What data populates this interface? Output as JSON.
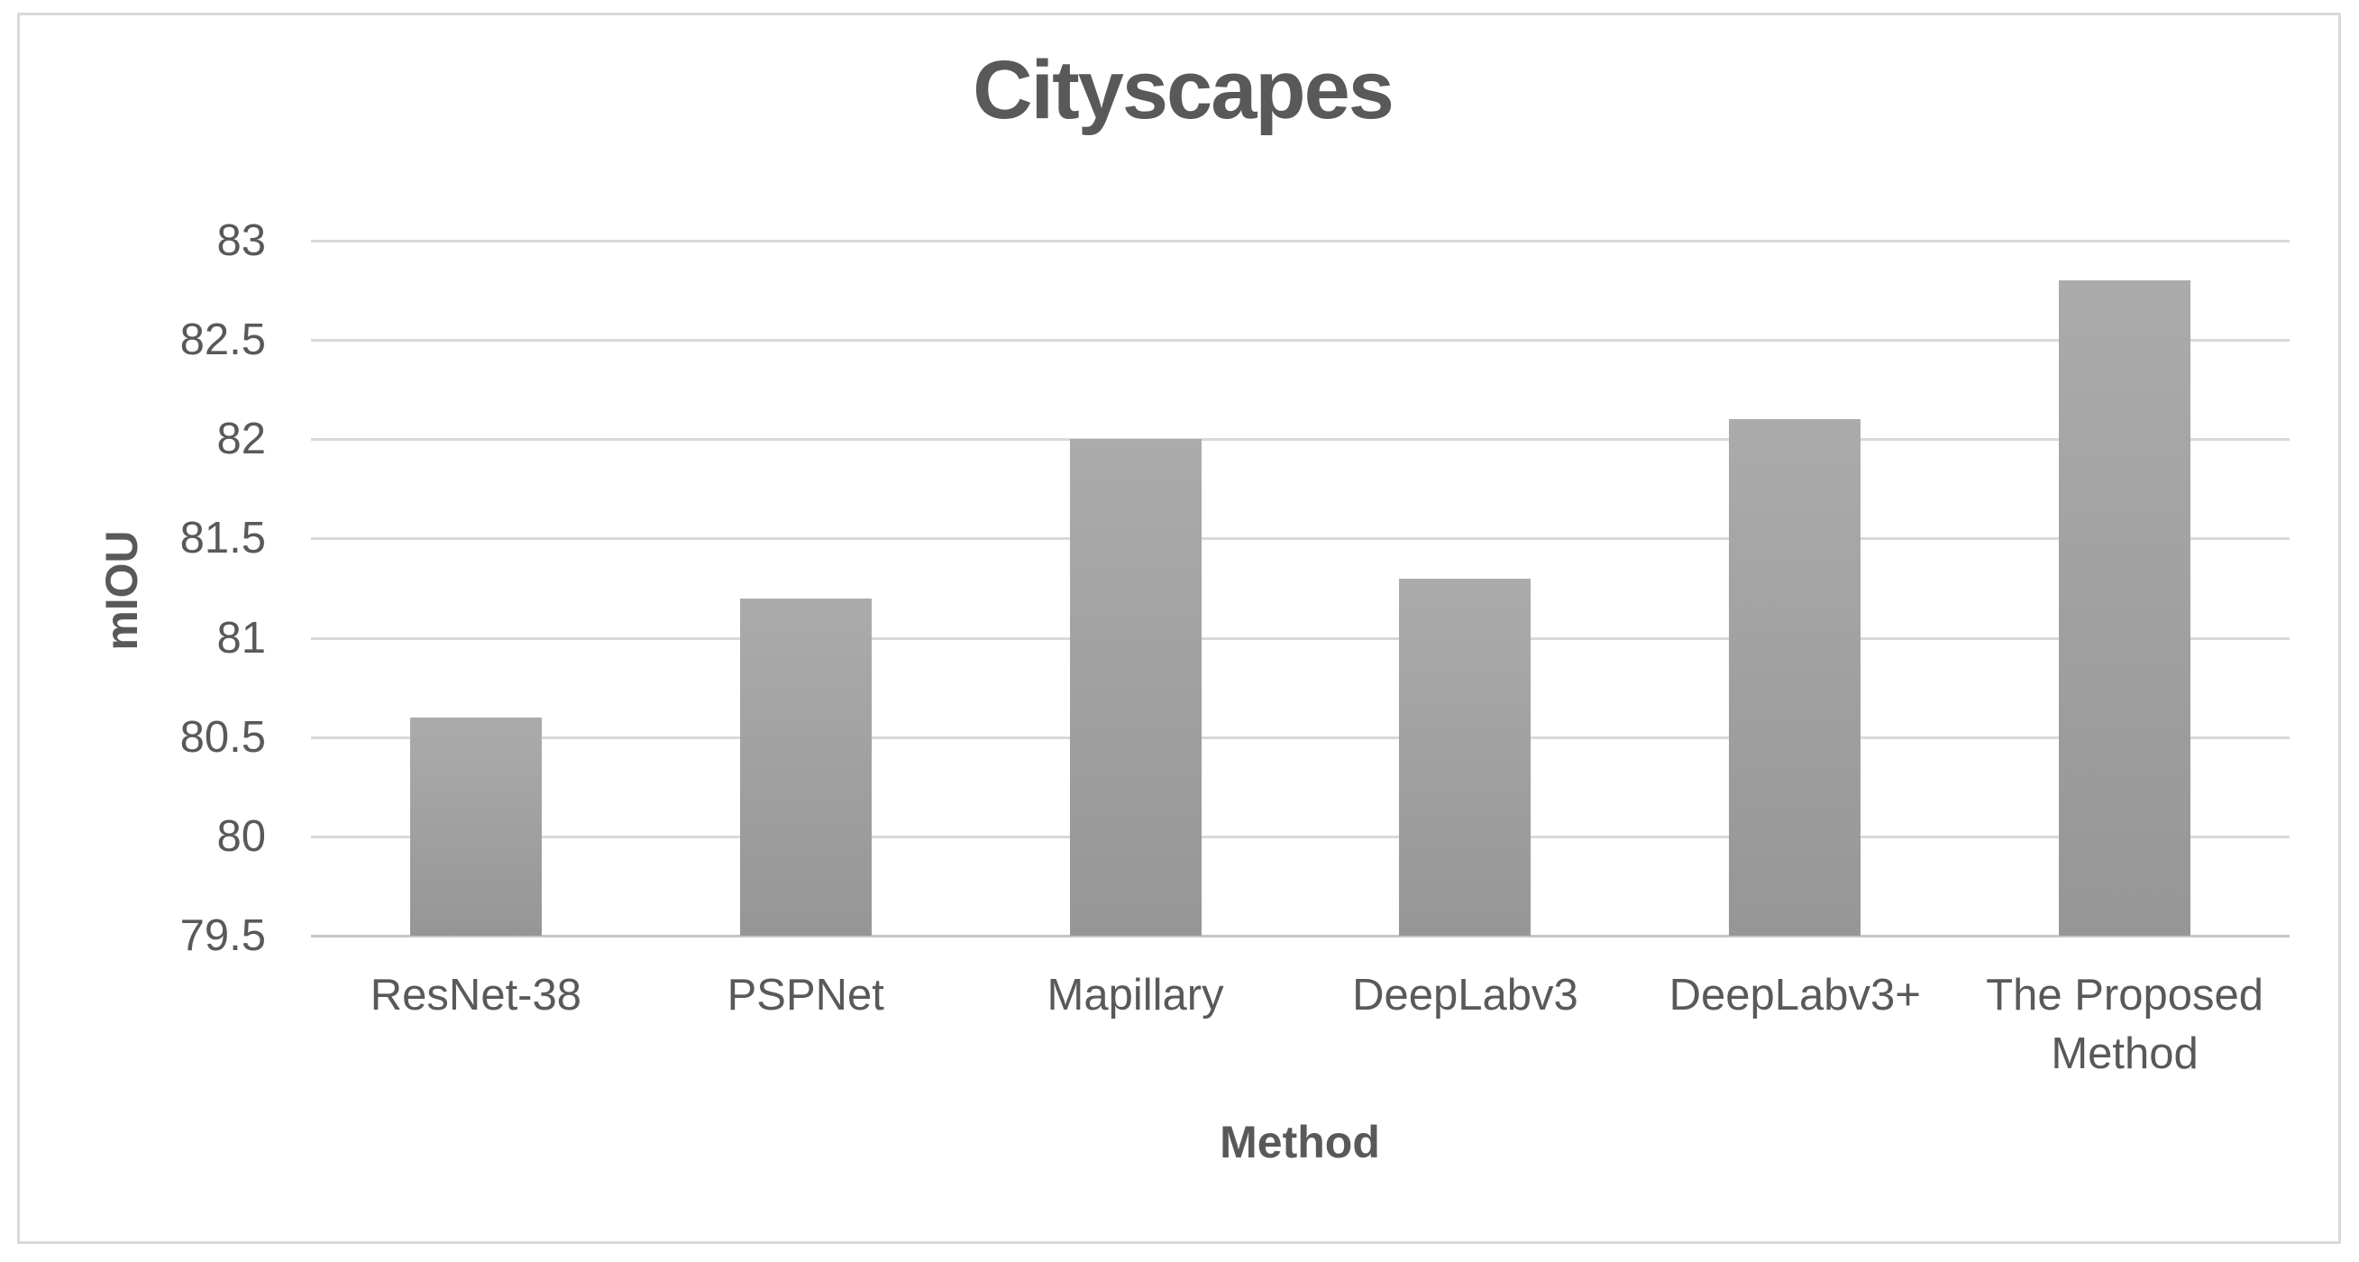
{
  "chart_data": {
    "type": "bar",
    "title": "Cityscapes",
    "xlabel": "Method",
    "ylabel": "mIOU",
    "categories": [
      "ResNet-38",
      "PSPNet",
      "Mapillary",
      "DeepLabv3",
      "DeepLabv3+",
      "The Proposed Method"
    ],
    "values": [
      80.6,
      81.2,
      82.0,
      81.3,
      82.1,
      82.8
    ],
    "ylim": [
      79.5,
      83
    ],
    "yticks": [
      83,
      82.5,
      82,
      81.5,
      81,
      80.5,
      80,
      79.5
    ],
    "ytick_step": 0.5,
    "grid": true,
    "legend": "none",
    "bar_single_series": true
  },
  "colors": {
    "bar_top": "#ababab",
    "bar_bottom": "#969696",
    "gridline": "#d9d9d9",
    "axis_line": "#c6c6c6",
    "text": "#595959",
    "chart_border": "#d9d9d9",
    "background": "#ffffff"
  }
}
